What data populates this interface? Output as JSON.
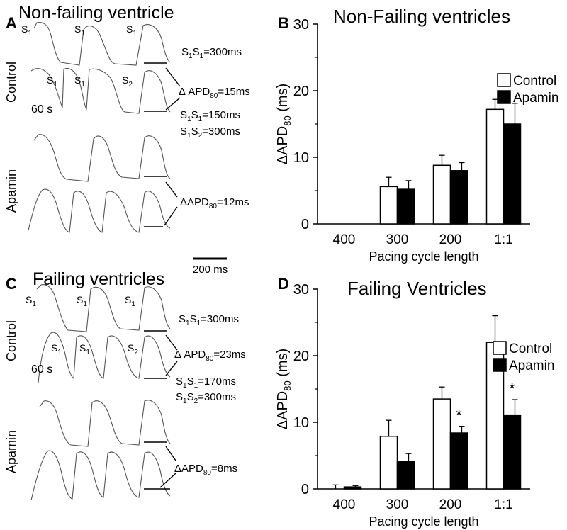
{
  "panels": {
    "A": {
      "letter": "A",
      "title": "Non-failing ventricle",
      "row_control": "Control",
      "row_apamin": "Apamin",
      "s1": "S",
      "s2": "S",
      "sub1": "1",
      "sub2": "2",
      "s1s1_top": "S1S1=300ms",
      "s1s1_second": "S1S1=150ms",
      "s1s2": "S1S2=300ms",
      "delta_ctrl": "Δ APD80=15ms",
      "delta_apamin": "ΔAPD80=12ms",
      "time_60s": "60 s"
    },
    "C": {
      "letter": "C",
      "title": "Failing ventricles",
      "row_control": "Control",
      "row_apamin": "Apamin",
      "s1s1_top": "S1S1=300ms",
      "s1s1_second": "S1S1=170ms",
      "s1s2": "S1S2=300ms",
      "delta_ctrl": "Δ APD80=23ms",
      "delta_apamin": "ΔAPD80=8ms",
      "time_60s": "60 s"
    },
    "scale_bar": "200 ms"
  },
  "chart_data": [
    {
      "panel": "B",
      "type": "bar",
      "title": "Non-Failing ventricles",
      "xlabel": "Pacing cycle length",
      "ylabel": "ΔAPD80 (ms)",
      "ylim": [
        0,
        30
      ],
      "yticks": [
        "0",
        "10",
        "20",
        "30"
      ],
      "categories": [
        "400",
        "300",
        "200",
        "1:1"
      ],
      "series": [
        {
          "name": "Control",
          "color": "#ffffff",
          "values": [
            0,
            5.6,
            8.8,
            17.2
          ],
          "errors": [
            0,
            1.4,
            1.5,
            1.5
          ]
        },
        {
          "name": "Apamin",
          "color": "#000000",
          "values": [
            0,
            5.2,
            8.0,
            15.0
          ],
          "errors": [
            0,
            1.3,
            1.2,
            3.1
          ]
        }
      ],
      "significance": [
        "",
        "",
        "",
        ""
      ],
      "legend": "top-right"
    },
    {
      "panel": "D",
      "type": "bar",
      "title": "Failing Ventricles",
      "xlabel": "Pacing cycle length",
      "ylabel": "ΔAPD80 (ms)",
      "ylim": [
        0,
        30
      ],
      "yticks": [
        "0",
        "10",
        "20",
        "30"
      ],
      "categories": [
        "400",
        "300",
        "200",
        "1:1"
      ],
      "series": [
        {
          "name": "Control",
          "color": "#ffffff",
          "values": [
            0,
            7.9,
            13.5,
            22.0
          ],
          "errors": [
            0.6,
            2.4,
            1.8,
            4.0
          ]
        },
        {
          "name": "Apamin",
          "color": "#000000",
          "values": [
            0.3,
            4.1,
            8.4,
            11.1
          ],
          "errors": [
            0.2,
            1.2,
            1.0,
            2.3
          ]
        }
      ],
      "significance": [
        "",
        "",
        "*",
        "*"
      ],
      "legend": "top-right"
    }
  ]
}
